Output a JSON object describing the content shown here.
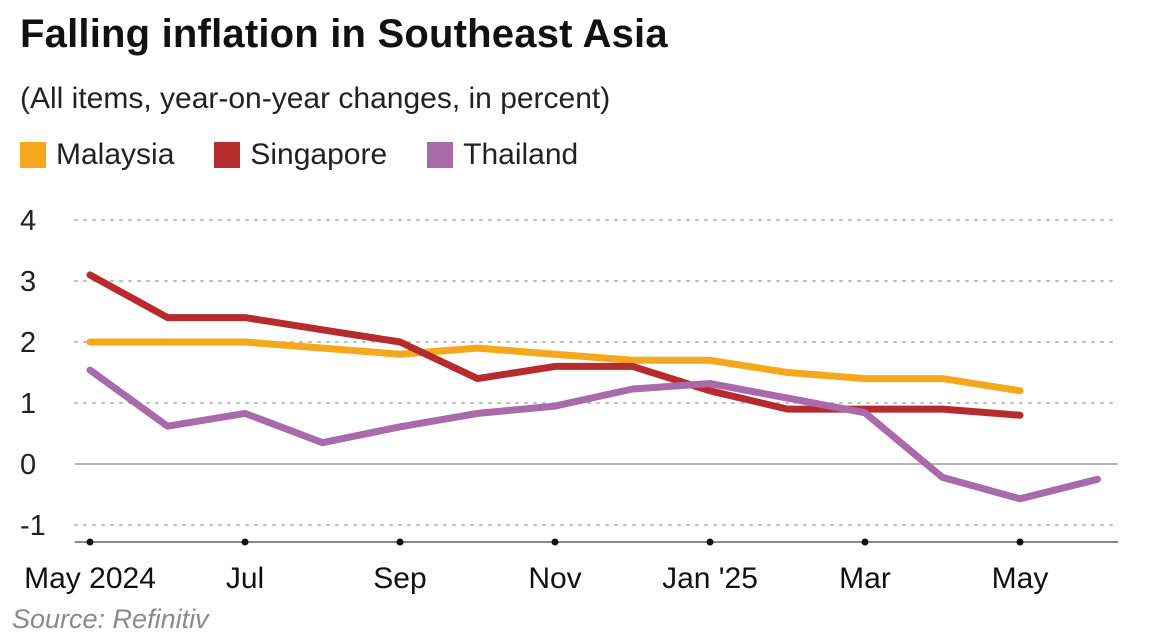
{
  "title": "Falling inflation in Southeast Asia",
  "subtitle": "(All items, year-on-year changes, in percent)",
  "source": "Source: Refinitiv",
  "chart_data": {
    "type": "line",
    "title": "Falling inflation in Southeast Asia",
    "subtitle": "(All items, year-on-year changes, in percent)",
    "ylim": [
      -1,
      4
    ],
    "yticks": [
      4,
      3,
      2,
      1,
      0,
      -1
    ],
    "grid": "dotted horizontal",
    "legend_position": "top-left",
    "x": [
      "2024-05",
      "2024-06",
      "2024-07",
      "2024-08",
      "2024-09",
      "2024-10",
      "2024-11",
      "2024-12",
      "2025-01",
      "2025-02",
      "2025-03",
      "2025-04",
      "2025-05",
      "2025-06"
    ],
    "xtick_labels": [
      {
        "x": "2024-05",
        "label": "May 2024"
      },
      {
        "x": "2024-07",
        "label": "Jul"
      },
      {
        "x": "2024-09",
        "label": "Sep"
      },
      {
        "x": "2024-11",
        "label": "Nov"
      },
      {
        "x": "2025-01",
        "label": "Jan '25"
      },
      {
        "x": "2025-03",
        "label": "Mar"
      },
      {
        "x": "2025-05",
        "label": "May"
      }
    ],
    "series": [
      {
        "name": "Malaysia",
        "color": "#f5a81c",
        "values": [
          2.0,
          2.0,
          2.0,
          1.9,
          1.8,
          1.9,
          1.8,
          1.7,
          1.7,
          1.5,
          1.4,
          1.4,
          1.2,
          null
        ]
      },
      {
        "name": "Singapore",
        "color": "#b52b2e",
        "values": [
          3.1,
          2.4,
          2.4,
          2.2,
          2.0,
          1.4,
          1.6,
          1.6,
          1.2,
          0.9,
          0.9,
          0.9,
          0.8,
          null
        ]
      },
      {
        "name": "Thailand",
        "color": "#a86aa8",
        "values": [
          1.54,
          0.62,
          0.83,
          0.35,
          0.61,
          0.83,
          0.95,
          1.23,
          1.32,
          1.08,
          0.84,
          -0.22,
          -0.57,
          -0.25
        ]
      }
    ]
  }
}
